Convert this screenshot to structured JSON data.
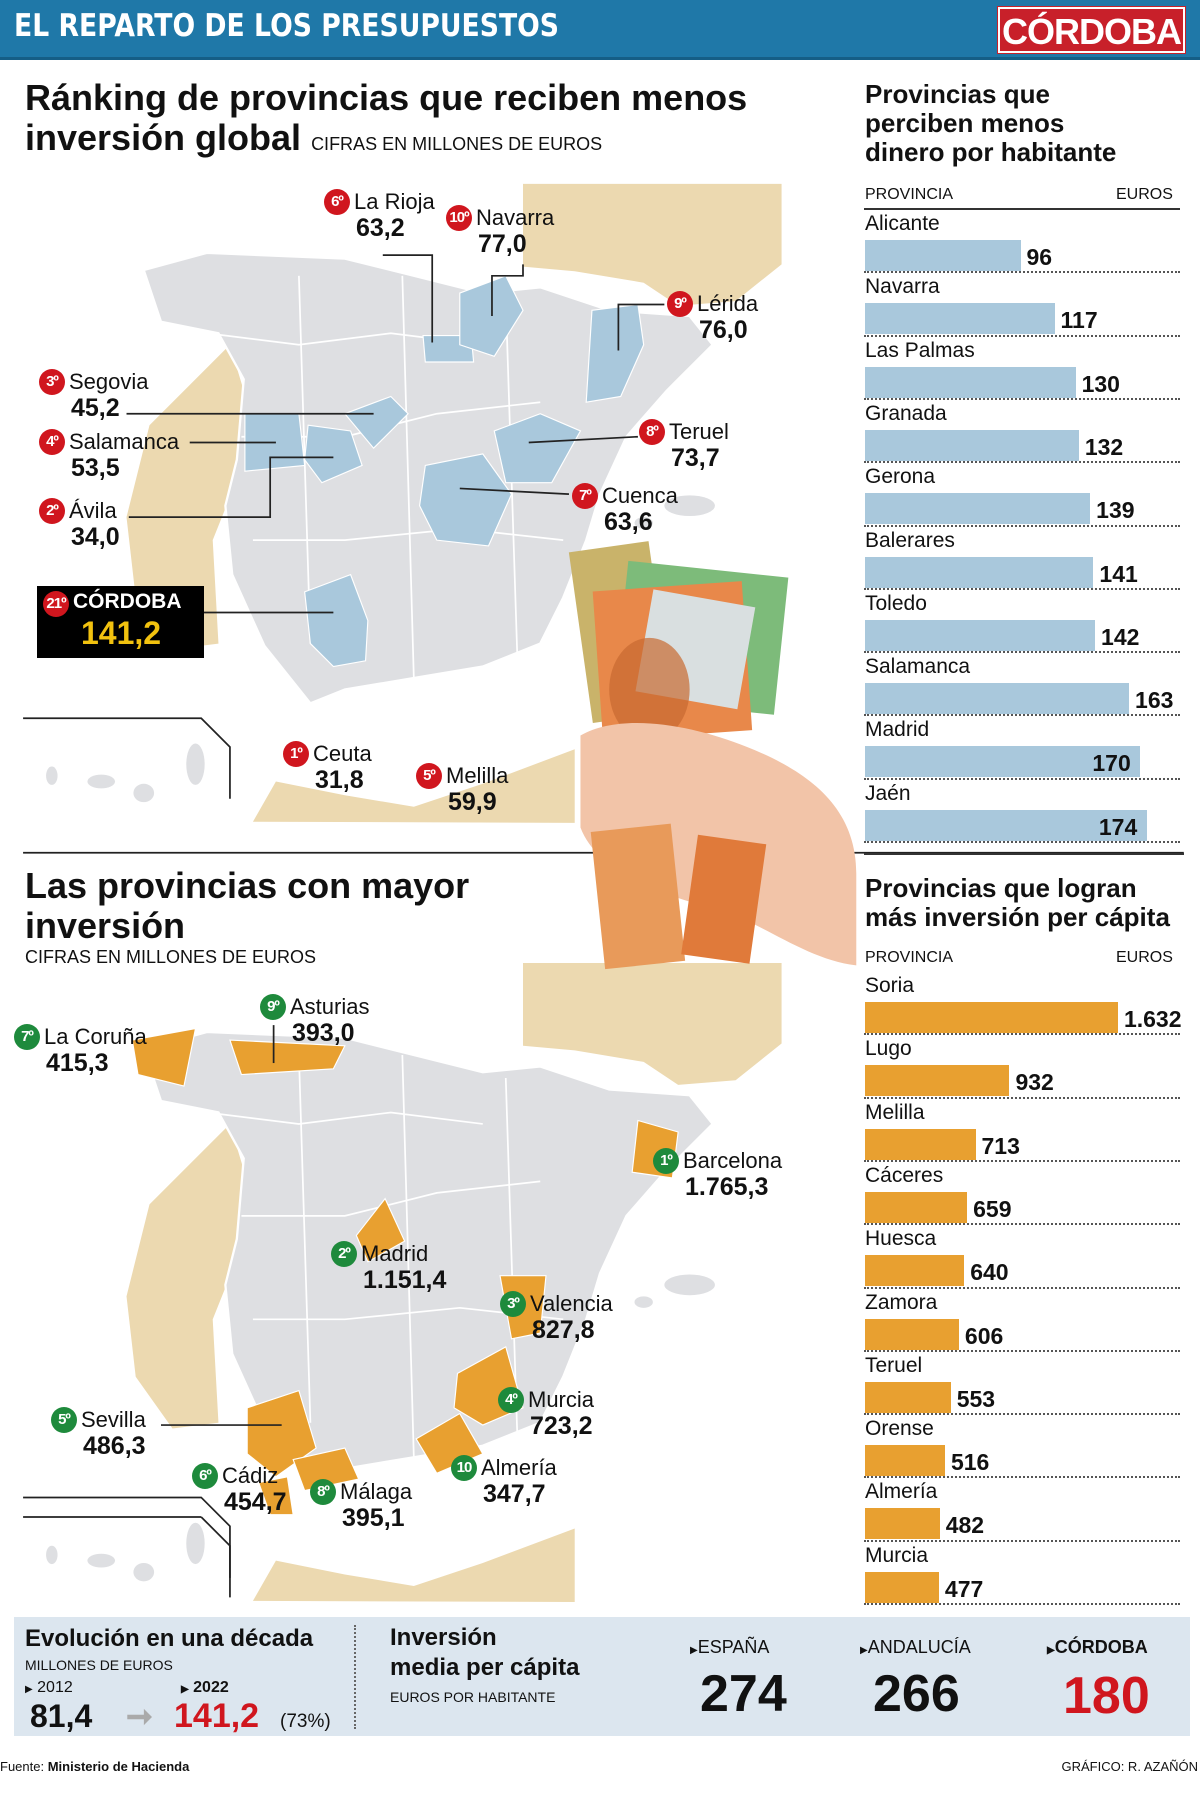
{
  "header": {
    "title": "EL REPARTO DE LOS PRESUPUESTOS",
    "logo": "CÓRDOBA",
    "color": "#1f78a8",
    "logo_color": "#c8202a"
  },
  "section_low": {
    "title_line1": "Ránking de provincias que reciben menos",
    "title_line2": "inversión global",
    "subtitle": "CIFRAS EN MILLONES DE EUROS"
  },
  "map_low": {
    "highlight_color": "#a9c8dc",
    "items": [
      {
        "rank": "6º",
        "name": "La Rioja",
        "value": "63,2"
      },
      {
        "rank": "10º",
        "name": "Navarra",
        "value": "77,0"
      },
      {
        "rank": "9º",
        "name": "Lérida",
        "value": "76,0"
      },
      {
        "rank": "3º",
        "name": "Segovia",
        "value": "45,2"
      },
      {
        "rank": "4º",
        "name": "Salamanca",
        "value": "53,5"
      },
      {
        "rank": "2º",
        "name": "Ávila",
        "value": "34,0"
      },
      {
        "rank": "8º",
        "name": "Teruel",
        "value": "73,7"
      },
      {
        "rank": "7º",
        "name": "Cuenca",
        "value": "63,6"
      },
      {
        "rank": "1º",
        "name": "Ceuta",
        "value": "31,8"
      },
      {
        "rank": "5º",
        "name": "Melilla",
        "value": "59,9"
      }
    ],
    "cordoba": {
      "rank": "21º",
      "name": "CÓRDOBA",
      "value": "141,2"
    }
  },
  "section_high": {
    "title_line1": "Las provincias con mayor",
    "title_line2": "inversión",
    "subtitle": "CIFRAS EN MILLONES DE EUROS"
  },
  "map_high": {
    "highlight_color": "#e8a030",
    "items": [
      {
        "rank": "7º",
        "name": "La Coruña",
        "value": "415,3"
      },
      {
        "rank": "9º",
        "name": "Asturias",
        "value": "393,0"
      },
      {
        "rank": "1º",
        "name": "Barcelona",
        "value": "1.765,3"
      },
      {
        "rank": "2º",
        "name": "Madrid",
        "value": "1.151,4"
      },
      {
        "rank": "3º",
        "name": "Valencia",
        "value": "827,8"
      },
      {
        "rank": "5º",
        "name": "Sevilla",
        "value": "486,3"
      },
      {
        "rank": "6º",
        "name": "Cádiz",
        "value": "454,7"
      },
      {
        "rank": "8º",
        "name": "Málaga",
        "value": "395,1"
      },
      {
        "rank": "4º",
        "name": "Murcia",
        "value": "723,2"
      },
      {
        "rank": "10",
        "name": "Almería",
        "value": "347,7"
      }
    ]
  },
  "chart_data": [
    {
      "type": "bar",
      "title": "Provincias que perciben menos dinero por habitante",
      "xlabel": "PROVINCIA",
      "ylabel": "EUROS",
      "color": "#a9c8dc",
      "categories": [
        "Alicante",
        "Navarra",
        "Las Palmas",
        "Granada",
        "Gerona",
        "Balerares",
        "Toledo",
        "Salamanca",
        "Madrid",
        "Jaén"
      ],
      "values": [
        96,
        117,
        130,
        132,
        139,
        141,
        142,
        163,
        170,
        174
      ],
      "value_labels": [
        "96",
        "117",
        "130",
        "132",
        "139",
        "141",
        "142",
        "163",
        "170",
        "174"
      ]
    },
    {
      "type": "bar",
      "title": "Provincias que logran más inversión per cápita",
      "xlabel": "PROVINCIA",
      "ylabel": "EUROS",
      "color": "#e8a030",
      "categories": [
        "Soria",
        "Lugo",
        "Melilla",
        "Cáceres",
        "Huesca",
        "Zamora",
        "Teruel",
        "Orense",
        "Almería",
        "Murcia"
      ],
      "values": [
        1632,
        932,
        713,
        659,
        640,
        606,
        553,
        516,
        482,
        477
      ],
      "value_labels": [
        "1.632",
        "932",
        "713",
        "659",
        "640",
        "606",
        "553",
        "516",
        "482",
        "477"
      ]
    }
  ],
  "chart_titles": [
    {
      "line1": "Provincias que",
      "line2": "perciben menos",
      "line3": "dinero por habitante",
      "col1": "PROVINCIA",
      "col2": "EUROS"
    },
    {
      "line1": "Provincias que logran",
      "line2": "más inversión per cápita",
      "col1": "PROVINCIA",
      "col2": "EUROS"
    }
  ],
  "evolution": {
    "title": "Evolución en una década",
    "subtitle": "MILLONES DE EUROS",
    "year1": "2012",
    "value1": "81,4",
    "year2": "2022",
    "value2": "141,2",
    "change": "(73%)"
  },
  "per_capita": {
    "title_line1": "Inversión",
    "title_line2": "media per cápita",
    "subtitle": "EUROS POR HABITANTE",
    "items": [
      {
        "label": "ESPAÑA",
        "value": "274"
      },
      {
        "label": "ANDALUCÍA",
        "value": "266"
      },
      {
        "label": "CÓRDOBA",
        "value": "180"
      }
    ]
  },
  "footer": {
    "source_label": "Fuente:",
    "source": "Ministerio de Hacienda",
    "credit": "GRÁFICO: R. AZAÑÓN"
  }
}
